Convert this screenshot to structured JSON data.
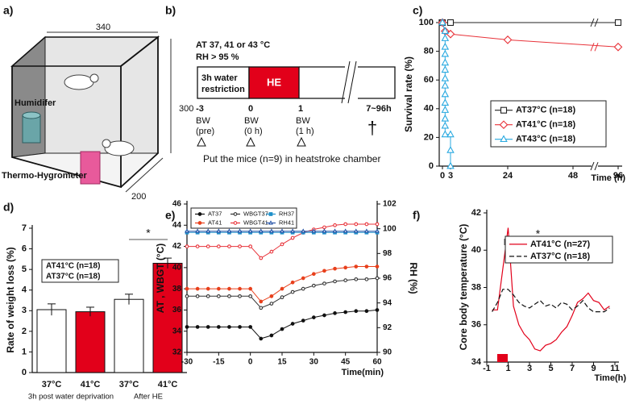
{
  "panels": {
    "a": {
      "label": "a)",
      "dims": [
        "340",
        "300",
        "200"
      ],
      "humidifier": "Humidifer",
      "hygrometer": "Thermo-Hygrometer"
    },
    "b": {
      "label": "b)",
      "condition": "AT 37, 41 or 43 °C",
      "humidity": "RH > 95 %",
      "restriction": [
        "3h water",
        "restriction"
      ],
      "exposure": "HE",
      "times": [
        "-3",
        "0",
        "1",
        "7~96h"
      ],
      "weights": [
        [
          "BW",
          "(pre)"
        ],
        [
          "BW",
          "(0 h)"
        ],
        [
          "BW",
          "(1 h)"
        ]
      ],
      "death": "†",
      "note": "Put the mice (n=9) in heatstroke chamber"
    }
  },
  "chart_data": [
    {
      "type": "line",
      "panel_label": "c)",
      "ylabel": "Survival rate (%)",
      "xlabel": "Time (h)",
      "xticks": [
        0,
        3,
        24,
        48,
        96
      ],
      "xlim": [
        0,
        96
      ],
      "ylim": [
        0,
        100
      ],
      "yticks": [
        0,
        20,
        40,
        60,
        80,
        100
      ],
      "axis_break": true,
      "series": [
        {
          "name": "AT37°C (n=18)",
          "color": "#222222",
          "marker": "square",
          "marker_fill": "open",
          "x": [
            0,
            3,
            96
          ],
          "values": [
            100,
            100,
            100
          ]
        },
        {
          "name": "AT41°C (n=18)",
          "color": "#e8333a",
          "marker": "diamond",
          "marker_fill": "open",
          "x": [
            0,
            1,
            3,
            24,
            96
          ],
          "values": [
            100,
            94,
            92,
            88,
            83
          ]
        },
        {
          "name": "AT43°C (n=18)",
          "color": "#29a9e0",
          "marker": "triangle",
          "marker_fill": "open",
          "x": [
            0,
            1,
            1,
            1,
            1,
            1,
            1,
            1,
            1,
            1,
            1,
            1,
            1,
            1,
            1,
            3,
            3,
            3
          ],
          "values": [
            100,
            94,
            89,
            83,
            78,
            72,
            67,
            61,
            56,
            50,
            44,
            39,
            33,
            28,
            22,
            22,
            11,
            0
          ]
        }
      ]
    },
    {
      "type": "bar",
      "panel_label": "d)",
      "ylabel": "Rate of weight loss (%)",
      "categories": [
        "37°C",
        "41°C",
        "37°C",
        "41°C"
      ],
      "groups": [
        "3h post water deprivation",
        "After HE"
      ],
      "values": [
        3.05,
        2.95,
        3.55,
        5.3
      ],
      "errors": [
        0.28,
        0.22,
        0.25,
        0.25
      ],
      "colors": [
        "#ffffff",
        "#e2001a",
        "#ffffff",
        "#e2001a"
      ],
      "legend": [
        "AT41°C (n=18)",
        "AT37°C (n=18)"
      ],
      "annotation": "*",
      "ylim": [
        0,
        7
      ],
      "yticks": [
        0,
        1,
        2,
        3,
        4,
        5,
        6,
        7
      ]
    },
    {
      "type": "line",
      "panel_label": "e)",
      "ylabel": "AT , WBGT (°C)",
      "y2label": "RH (%)",
      "xlabel": "Time(min)",
      "xlim": [
        -30,
        60
      ],
      "xticks": [
        -30,
        -15,
        0,
        15,
        30,
        45,
        60
      ],
      "ylim": [
        32,
        46
      ],
      "yticks": [
        32,
        34,
        36,
        38,
        40,
        42,
        44,
        46
      ],
      "y2lim": [
        90,
        102
      ],
      "y2ticks": [
        90,
        92,
        94,
        96,
        98,
        100,
        102
      ],
      "x": [
        -30,
        -25,
        -20,
        -15,
        -10,
        -5,
        0,
        5,
        10,
        15,
        20,
        25,
        30,
        35,
        40,
        45,
        50,
        55,
        60
      ],
      "series": [
        {
          "name": "AT37",
          "color": "#111111",
          "marker": "circle",
          "marker_fill": "filled",
          "values": [
            34.4,
            34.4,
            34.4,
            34.4,
            34.4,
            34.4,
            34.4,
            33.3,
            33.6,
            34.2,
            34.7,
            35.0,
            35.3,
            35.5,
            35.7,
            35.8,
            35.9,
            35.9,
            36.0
          ]
        },
        {
          "name": "AT41",
          "color": "#e8401c",
          "marker": "circle",
          "marker_fill": "filled",
          "values": [
            38.0,
            38.0,
            38.0,
            38.0,
            38.0,
            38.0,
            38.0,
            36.8,
            37.3,
            38.0,
            38.6,
            39.0,
            39.4,
            39.7,
            39.9,
            40.0,
            40.1,
            40.1,
            40.1
          ]
        },
        {
          "name": "WBGT37",
          "color": "#333333",
          "marker": "circle",
          "marker_fill": "open",
          "values": [
            37.3,
            37.3,
            37.3,
            37.3,
            37.3,
            37.3,
            37.3,
            36.2,
            36.6,
            37.2,
            37.7,
            38.0,
            38.3,
            38.5,
            38.7,
            38.8,
            38.9,
            38.9,
            39.0
          ]
        },
        {
          "name": "WBGT41",
          "color": "#e8333a",
          "marker": "circle",
          "marker_fill": "open",
          "values": [
            42.0,
            42.0,
            42.0,
            42.0,
            42.0,
            42.0,
            42.0,
            40.9,
            41.5,
            42.2,
            42.8,
            43.3,
            43.6,
            43.8,
            44.0,
            44.1,
            44.1,
            44.1,
            44.1
          ]
        },
        {
          "name": "RH37",
          "color": "#1f8fc9",
          "marker": "square",
          "marker_fill": "filled",
          "axis": "y2",
          "values": [
            99.7,
            99.7,
            99.7,
            99.7,
            99.7,
            99.7,
            99.7,
            99.7,
            99.7,
            99.7,
            99.7,
            99.7,
            99.7,
            99.7,
            99.7,
            99.7,
            99.7,
            99.7,
            99.7
          ]
        },
        {
          "name": "RH41",
          "color": "#2855a8",
          "marker": "triangle",
          "marker_fill": "open",
          "axis": "y2",
          "values": [
            99.8,
            99.8,
            99.8,
            99.8,
            99.8,
            99.8,
            99.8,
            99.8,
            99.8,
            99.8,
            99.8,
            99.8,
            99.8,
            99.8,
            99.8,
            99.8,
            99.8,
            99.8,
            99.8
          ]
        }
      ]
    },
    {
      "type": "line",
      "panel_label": "f)",
      "ylabel": "Core body temperature (°C)",
      "xlabel": "Time(h)",
      "annotation": "*",
      "xlim": [
        -1,
        11
      ],
      "xticks": [
        -1,
        1,
        3,
        5,
        7,
        9,
        11
      ],
      "ylim": [
        34,
        42
      ],
      "yticks": [
        34,
        36,
        38,
        40,
        42
      ],
      "x": [
        -0.5,
        0,
        0.5,
        1,
        1.5,
        2,
        2.5,
        3,
        3.5,
        4,
        4.5,
        5,
        5.5,
        6,
        6.5,
        7,
        7.5,
        8,
        8.5,
        9,
        9.5,
        10,
        10.5
      ],
      "series": [
        {
          "name": "AT41°C (n=27)",
          "color": "#e2001a",
          "linestyle": "solid",
          "values": [
            36.8,
            36.8,
            39.0,
            41.2,
            37.0,
            36.0,
            35.5,
            35.2,
            34.7,
            34.6,
            34.9,
            35.0,
            35.2,
            35.6,
            35.9,
            36.5,
            37.2,
            37.4,
            37.7,
            37.3,
            37.2,
            36.8,
            37.0
          ]
        },
        {
          "name": "AT37°C (n=18)",
          "color": "#111111",
          "linestyle": "dashed",
          "values": [
            36.7,
            37.2,
            37.9,
            37.9,
            37.6,
            37.2,
            37.0,
            36.9,
            37.1,
            37.3,
            37.0,
            37.1,
            36.9,
            37.2,
            37.1,
            36.8,
            37.0,
            37.3,
            36.9,
            36.7,
            36.7,
            36.7,
            36.9
          ]
        }
      ]
    }
  ]
}
